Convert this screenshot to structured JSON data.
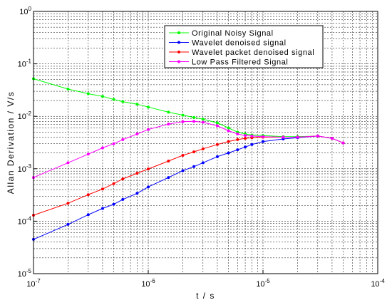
{
  "chart_data": {
    "type": "line",
    "title": "",
    "xlabel": "t / s",
    "ylabel": "Allan Derivation / V/s",
    "x_scale": "log",
    "y_scale": "log",
    "xlim": [
      1e-07,
      0.0001
    ],
    "ylim": [
      1e-05,
      1
    ],
    "grid": true,
    "legend_position": "top-right",
    "x_ticks": [
      {
        "base": "10",
        "exp": "-7",
        "value": 1e-07
      },
      {
        "base": "10",
        "exp": "-6",
        "value": 1e-06
      },
      {
        "base": "10",
        "exp": "-5",
        "value": 1e-05
      },
      {
        "base": "10",
        "exp": "-4",
        "value": 0.0001
      }
    ],
    "y_ticks": [
      {
        "base": "10",
        "exp": "-5",
        "value": 1e-05
      },
      {
        "base": "10",
        "exp": "-4",
        "value": 0.0001
      },
      {
        "base": "10",
        "exp": "-3",
        "value": 0.001
      },
      {
        "base": "10",
        "exp": "-2",
        "value": 0.01
      },
      {
        "base": "10",
        "exp": "-1",
        "value": 0.1
      },
      {
        "base": "10",
        "exp": "0",
        "value": 1
      }
    ],
    "series": [
      {
        "name": "Original Noisy Signal",
        "color": "#00ff00",
        "x": [
          1e-07,
          2e-07,
          3e-07,
          4e-07,
          5e-07,
          6e-07,
          8e-07,
          1e-06,
          1.5e-06,
          2e-06,
          2.5e-06,
          3e-06,
          4e-06,
          5e-06,
          6e-06,
          7e-06,
          8e-06,
          1e-05,
          1.5e-05,
          2e-05,
          3e-05,
          4e-05,
          5e-05
        ],
        "y": [
          0.052,
          0.033,
          0.027,
          0.024,
          0.021,
          0.019,
          0.017,
          0.015,
          0.012,
          0.0105,
          0.0095,
          0.0088,
          0.0075,
          0.006,
          0.005,
          0.0046,
          0.0044,
          0.0043,
          0.0041,
          0.0041,
          0.0042,
          0.0038,
          0.0031
        ]
      },
      {
        "name": "Wavelet denoised signal",
        "color": "#0000ff",
        "x": [
          1e-07,
          2e-07,
          3e-07,
          4e-07,
          5e-07,
          6e-07,
          8e-07,
          1e-06,
          1.5e-06,
          2e-06,
          2.5e-06,
          3e-06,
          4e-06,
          5e-06,
          6e-06,
          7e-06,
          8e-06,
          1e-05,
          1.5e-05,
          2e-05,
          3e-05,
          4e-05,
          5e-05
        ],
        "y": [
          4.5e-05,
          8.7e-05,
          0.000133,
          0.000175,
          0.00021,
          0.00026,
          0.00034,
          0.00045,
          0.00068,
          0.00092,
          0.0011,
          0.0013,
          0.0017,
          0.002,
          0.0023,
          0.0026,
          0.0029,
          0.0033,
          0.0037,
          0.0039,
          0.0042,
          0.0038,
          0.0031
        ]
      },
      {
        "name": "Wavelet packet denoised signal",
        "color": "#ff0000",
        "x": [
          1e-07,
          2e-07,
          3e-07,
          4e-07,
          5e-07,
          6e-07,
          8e-07,
          1e-06,
          1.5e-06,
          2e-06,
          2.5e-06,
          3e-06,
          4e-06,
          5e-06,
          6e-06,
          7e-06,
          8e-06,
          1e-05,
          1.5e-05,
          2e-05,
          3e-05,
          4e-05,
          5e-05
        ],
        "y": [
          0.00013,
          0.00022,
          0.00032,
          0.00041,
          0.00052,
          0.00064,
          0.00082,
          0.00099,
          0.0014,
          0.0018,
          0.0021,
          0.0024,
          0.0029,
          0.0033,
          0.0036,
          0.0038,
          0.0039,
          0.004,
          0.004,
          0.004,
          0.0042,
          0.0038,
          0.0031
        ]
      },
      {
        "name": "Low Pass Filtered Signal",
        "color": "#ff00ff",
        "x": [
          1e-07,
          2e-07,
          3e-07,
          4e-07,
          5e-07,
          6e-07,
          8e-07,
          1e-06,
          1.5e-06,
          2e-06,
          2.5e-06,
          3e-06,
          4e-06,
          5e-06,
          6e-06,
          7e-06,
          8e-06,
          1e-05,
          1.5e-05,
          2e-05,
          3e-05,
          4e-05,
          5e-05
        ],
        "y": [
          0.00068,
          0.0013,
          0.0019,
          0.0025,
          0.003,
          0.0036,
          0.0046,
          0.0056,
          0.0071,
          0.0079,
          0.008,
          0.0077,
          0.0066,
          0.0053,
          0.0046,
          0.0043,
          0.0042,
          0.0041,
          0.004,
          0.004,
          0.0042,
          0.0038,
          0.0031
        ]
      }
    ]
  }
}
